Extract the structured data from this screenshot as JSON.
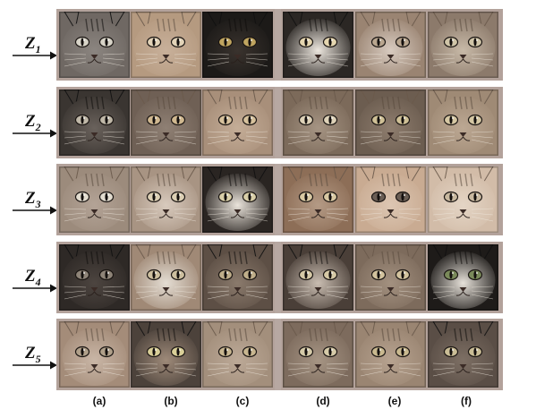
{
  "figure": {
    "rows": [
      {
        "label": "Z",
        "index": "1",
        "tiles": [
          {
            "fur": "#6f6863",
            "face": "#8b8580",
            "eye": "#d8d4c8",
            "dark": true
          },
          {
            "fur": "#b59a80",
            "face": "#c8b09a",
            "eye": "#e2d3b8",
            "dark": false
          },
          {
            "fur": "#1c1a18",
            "face": "#3a332e",
            "eye": "#c0a560",
            "dark": true
          },
          {
            "fur": "#2b2724",
            "face": "#ede7df",
            "eye": "#e5d6b0",
            "dark": true
          },
          {
            "fur": "#9a8472",
            "face": "#d8cbc0",
            "eye": "#b9a68f",
            "dark": false
          },
          {
            "fur": "#8c7a6b",
            "face": "#c8baa8",
            "eye": "#d0c5a8",
            "dark": false
          }
        ]
      },
      {
        "label": "Z",
        "index": "2",
        "tiles": [
          {
            "fur": "#3a3531",
            "face": "#6a625c",
            "eye": "#c0b8a8",
            "dark": true
          },
          {
            "fur": "#6f6055",
            "face": "#8f8074",
            "eye": "#d0b890",
            "dark": false
          },
          {
            "fur": "#a88f7a",
            "face": "#c4ad97",
            "eye": "#d7c29d",
            "dark": false
          },
          {
            "fur": "#7c6a5a",
            "face": "#a59483",
            "eye": "#ded2b8",
            "dark": false
          },
          {
            "fur": "#6c5d50",
            "face": "#8e7d6e",
            "eye": "#cfc096",
            "dark": false
          },
          {
            "fur": "#9f8a75",
            "face": "#bca893",
            "eye": "#d6c8a4",
            "dark": false
          }
        ]
      },
      {
        "label": "Z",
        "index": "3",
        "tiles": [
          {
            "fur": "#9c8b7c",
            "face": "#b3a396",
            "eye": "#e3ddd0",
            "dark": false
          },
          {
            "fur": "#a89483",
            "face": "#d8cabd",
            "eye": "#dccfb4",
            "dark": false
          },
          {
            "fur": "#2a2522",
            "face": "#eae4db",
            "eye": "#d9cfa8",
            "dark": true
          },
          {
            "fur": "#8d6e57",
            "face": "#b49a85",
            "eye": "#d9c9a3",
            "dark": false
          },
          {
            "fur": "#c9ab92",
            "face": "#dcc6b2",
            "eye": "#6a5e55",
            "dark": false
          },
          {
            "fur": "#d2bca8",
            "face": "#e4d5c5",
            "eye": "#c9b9a0",
            "dark": false
          }
        ]
      },
      {
        "label": "Z",
        "index": "4",
        "tiles": [
          {
            "fur": "#2e2926",
            "face": "#4d4540",
            "eye": "#8e8478",
            "dark": true
          },
          {
            "fur": "#a08976",
            "face": "#e4ddd3",
            "eye": "#cdbf9f",
            "dark": false
          },
          {
            "fur": "#5d4f45",
            "face": "#8a7a6c",
            "eye": "#bfae8a",
            "dark": true
          },
          {
            "fur": "#4a3f38",
            "face": "#c9bdb1",
            "eye": "#d6c9a6",
            "dark": true
          },
          {
            "fur": "#7d6b5c",
            "face": "#a39180",
            "eye": "#d3c39e",
            "dark": false
          },
          {
            "fur": "#1e1b19",
            "face": "#e7e2da",
            "eye": "#7a8a5a",
            "dark": true
          }
        ]
      },
      {
        "label": "Z",
        "index": "5",
        "tiles": [
          {
            "fur": "#a48c79",
            "face": "#c9b6a6",
            "eye": "#b0a08a",
            "dark": false
          },
          {
            "fur": "#4c423b",
            "face": "#9e8a79",
            "eye": "#d9cf98",
            "dark": true
          },
          {
            "fur": "#a38f7c",
            "face": "#bca997",
            "eye": "#c8b690",
            "dark": false
          },
          {
            "fur": "#7d6b5d",
            "face": "#a69584",
            "eye": "#d6cba9",
            "dark": false
          },
          {
            "fur": "#9a8572",
            "face": "#b7a390",
            "eye": "#c9b98f",
            "dark": false
          },
          {
            "fur": "#5a4e46",
            "face": "#7d6f64",
            "eye": "#cabd96",
            "dark": true
          }
        ]
      }
    ],
    "column_labels": [
      "(a)",
      "(b)",
      "(c)",
      "(d)",
      "(e)",
      "(f)"
    ],
    "colors": {
      "panel_border": "#b3a29b",
      "arrow": "#111111",
      "text": "#111111"
    }
  }
}
